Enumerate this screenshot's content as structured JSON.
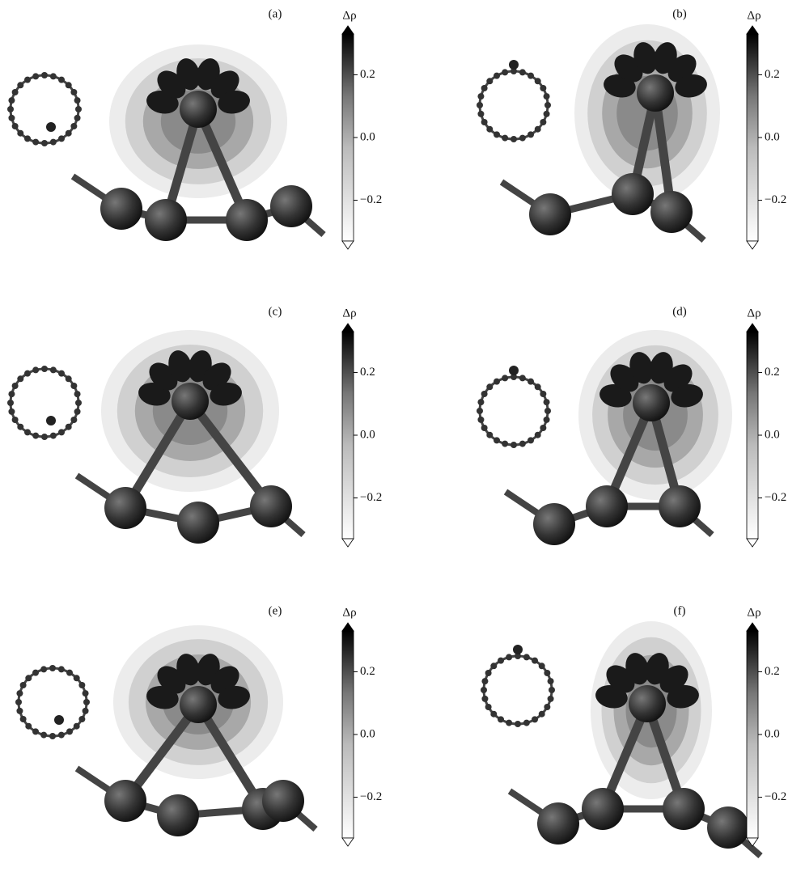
{
  "panels": [
    {
      "label": "(a)",
      "colorbar": {
        "label": "Δρ",
        "lim": [
          -0.33,
          0.33
        ],
        "ticks": [
          0.2,
          {
            "value": 0,
            "label": "0.0"
          },
          {
            "value": -0.2,
            "label": "−0.2"
          }
        ]
      }
    },
    {
      "label": "(b)",
      "colorbar": {
        "label": "Δρ",
        "lim": [
          -0.33,
          0.33
        ],
        "ticks": [
          0.2,
          {
            "value": 0,
            "label": "0.0"
          },
          {
            "value": -0.2,
            "label": "−0.2"
          }
        ]
      }
    },
    {
      "label": "(c)",
      "colorbar": {
        "label": "Δρ",
        "lim": [
          -0.33,
          0.33
        ],
        "ticks": [
          0.2,
          {
            "value": 0,
            "label": "0.0"
          },
          {
            "value": -0.2,
            "label": "−0.2"
          }
        ]
      }
    },
    {
      "label": "(d)",
      "colorbar": {
        "label": "Δρ",
        "lim": [
          -0.33,
          0.33
        ],
        "ticks": [
          0.2,
          {
            "value": 0,
            "label": "0.0"
          },
          {
            "value": -0.2,
            "label": "−0.2"
          }
        ]
      }
    },
    {
      "label": "(e)",
      "colorbar": {
        "label": "Δρ",
        "lim": [
          -0.33,
          0.33
        ],
        "ticks": [
          0.2,
          {
            "value": 0,
            "label": "0.0"
          },
          {
            "value": -0.2,
            "label": "−0.2"
          }
        ]
      }
    },
    {
      "label": "(f)",
      "colorbar": {
        "label": "Δρ",
        "lim": [
          -0.33,
          0.33
        ],
        "ticks": [
          0.2,
          {
            "value": 0,
            "label": "0.0"
          },
          {
            "value": -0.2,
            "label": "−0.2"
          }
        ]
      }
    }
  ]
}
